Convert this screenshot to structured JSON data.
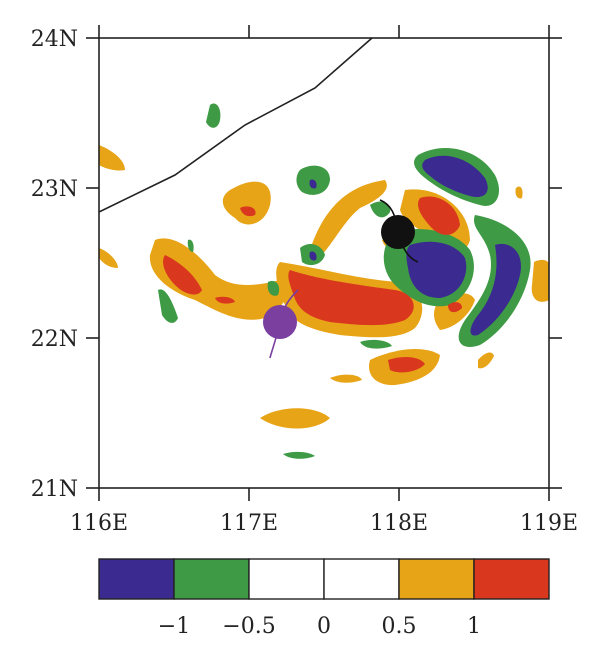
{
  "map": {
    "lat_labels": [
      "24N",
      "23N",
      "22N",
      "21N"
    ],
    "lon_labels": [
      "116E",
      "117E",
      "118E",
      "119E"
    ],
    "lon_range": [
      116,
      119
    ],
    "lat_range": [
      21,
      24
    ]
  },
  "colorbar": {
    "labels": [
      "−1",
      "−0.5",
      "0",
      "0.5",
      "1"
    ],
    "bins": [
      {
        "range": "< -1",
        "color": "#3b2a8f"
      },
      {
        "range": "-1 to -0.5",
        "color": "#3e9a45"
      },
      {
        "range": "-0.5 to 0",
        "color": "#ffffff"
      },
      {
        "range": "0 to 0.5",
        "color": "#ffffff"
      },
      {
        "range": "0.5 to 1",
        "color": "#e8a417"
      },
      {
        "range": "> 1",
        "color": "#d9381e"
      }
    ]
  },
  "colors": {
    "dark_blue": "#3b2a8f",
    "green": "#3e9a45",
    "orange": "#e8a417",
    "red": "#d9381e",
    "purple_marker": "#7b3fa0",
    "black_marker": "#111111"
  },
  "markers": [
    {
      "name": "typhoon-symbol-black",
      "lon": 118.0,
      "lat": 22.7,
      "color": "#111111"
    },
    {
      "name": "typhoon-symbol-purple",
      "lon": 117.2,
      "lat": 22.1,
      "color": "#7b3fa0"
    }
  ]
}
